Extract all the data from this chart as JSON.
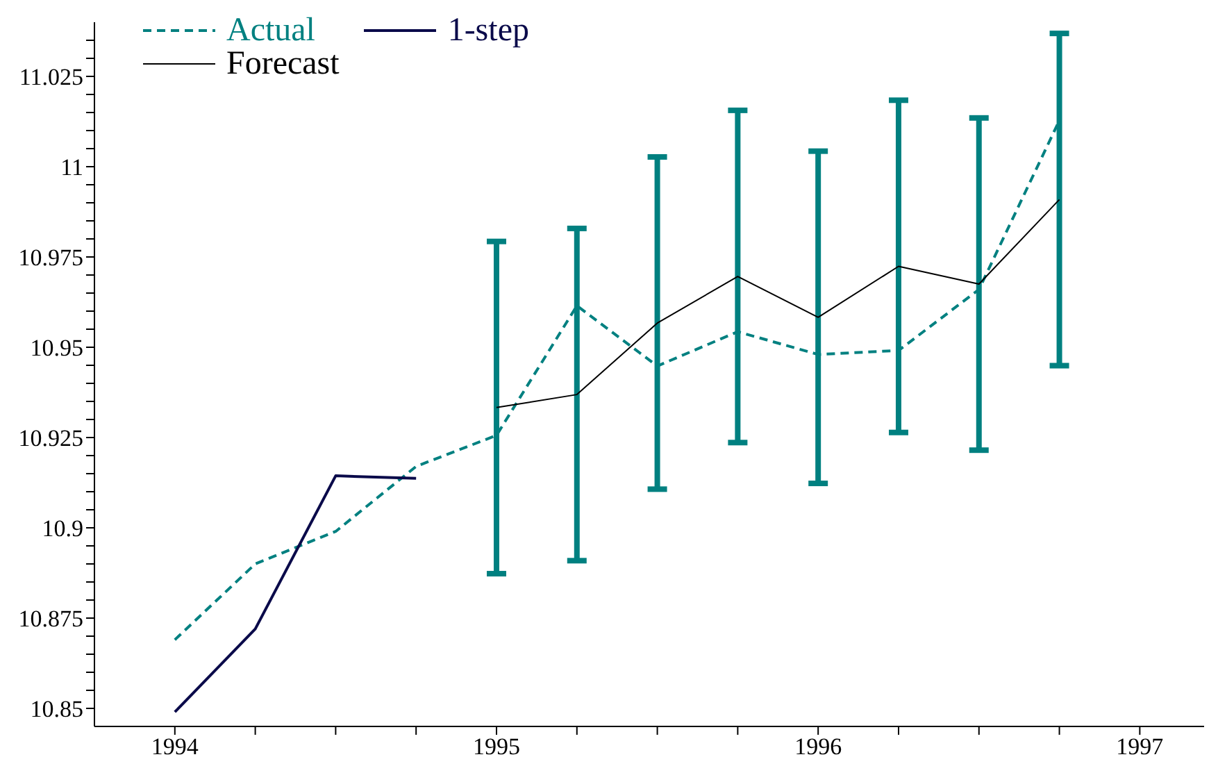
{
  "chart_data": {
    "type": "line",
    "xlim": [
      1993.75,
      1997.2
    ],
    "xticks": [
      1994,
      {
        "value": 1994.25,
        "label": null
      },
      {
        "value": 1994.5,
        "label": null
      },
      {
        "value": 1994.75,
        "label": null
      },
      1995,
      {
        "value": 1995.25,
        "label": null
      },
      {
        "value": 1995.5,
        "label": null
      },
      {
        "value": 1995.75,
        "label": null
      },
      1996,
      {
        "value": 1996.25,
        "label": null
      },
      {
        "value": 1996.5,
        "label": null
      },
      {
        "value": 1996.75,
        "label": null
      },
      1997
    ],
    "ylim": [
      10.845,
      11.04
    ],
    "yticks": [
      10.85,
      {
        "value": 10.855,
        "label": null
      },
      {
        "value": 10.86,
        "label": null
      },
      {
        "value": 10.865,
        "label": null
      },
      {
        "value": 10.87,
        "label": null
      },
      10.875,
      {
        "value": 10.88,
        "label": null
      },
      {
        "value": 10.885,
        "label": null
      },
      {
        "value": 10.89,
        "label": null
      },
      {
        "value": 10.895,
        "label": null
      },
      10.9,
      {
        "value": 10.905,
        "label": null
      },
      {
        "value": 10.91,
        "label": null
      },
      {
        "value": 10.915,
        "label": null
      },
      {
        "value": 10.92,
        "label": null
      },
      10.925,
      {
        "value": 10.93,
        "label": null
      },
      {
        "value": 10.935,
        "label": null
      },
      {
        "value": 10.94,
        "label": null
      },
      {
        "value": 10.945,
        "label": null
      },
      10.95,
      {
        "value": 10.955,
        "label": null
      },
      {
        "value": 10.96,
        "label": null
      },
      {
        "value": 10.965,
        "label": null
      },
      {
        "value": 10.97,
        "label": null
      },
      10.975,
      {
        "value": 10.98,
        "label": null
      },
      {
        "value": 10.985,
        "label": null
      },
      {
        "value": 10.99,
        "label": null
      },
      {
        "value": 10.995,
        "label": null
      },
      11,
      {
        "value": 11.005,
        "label": null
      },
      {
        "value": 11.01,
        "label": null
      },
      {
        "value": 11.015,
        "label": null
      },
      {
        "value": 11.02,
        "label": null
      },
      11.025,
      {
        "value": 11.03,
        "label": null
      },
      {
        "value": 11.035,
        "label": null
      }
    ],
    "grid": false,
    "legend": "top left",
    "marker": "none",
    "series": [
      {
        "name": "Actual",
        "color": "#008080",
        "line_style": "dashed",
        "x": [
          1994,
          1994.25,
          1994.5,
          1994.75,
          1995,
          1995.25,
          1995.5,
          1995.75,
          1996,
          1996.25,
          1996.5,
          1996.75
        ],
        "values": [
          10.869,
          10.89,
          10.899,
          10.917,
          10.9256,
          10.9615,
          10.9448,
          10.9543,
          10.948,
          10.9491,
          10.966,
          11.0128
        ]
      },
      {
        "name": "1-step",
        "color": "#0a0a4a",
        "line_style": "solid",
        "x": [
          1994,
          1994.25,
          1994.5,
          1994.75
        ],
        "values": [
          10.849,
          10.872,
          10.9144,
          10.9137
        ]
      },
      {
        "name": "Forecast",
        "color": "#000000",
        "line_style": "solid",
        "x": [
          1995,
          1995.25,
          1995.5,
          1995.75,
          1996,
          1996.25,
          1996.5,
          1996.75
        ],
        "values": [
          10.9333,
          10.9369,
          10.9567,
          10.9696,
          10.9583,
          10.9724,
          10.9675,
          10.9909
        ],
        "errors": [
          0.046,
          0.046,
          0.046,
          0.046,
          0.046,
          0.046,
          0.046,
          0.046
        ]
      }
    ]
  }
}
